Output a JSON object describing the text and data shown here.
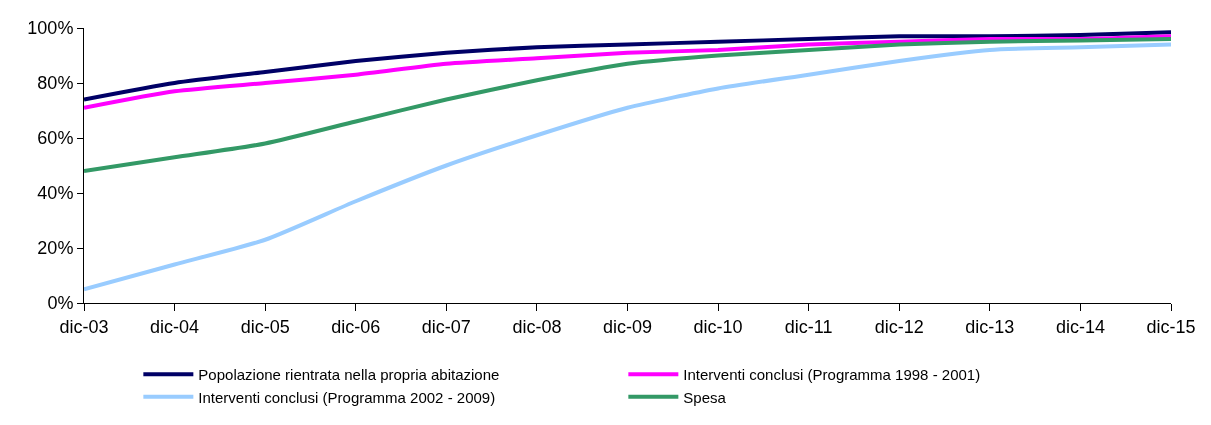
{
  "chart_data": {
    "type": "line",
    "categories": [
      "dic-03",
      "dic-04",
      "dic-05",
      "dic-06",
      "dic-07",
      "dic-08",
      "dic-09",
      "dic-10",
      "dic-11",
      "dic-12",
      "dic-13",
      "dic-14",
      "dic-15"
    ],
    "series": [
      {
        "name": "Popolazione rientrata nella propria abitazione",
        "color": "#000066",
        "values": [
          74,
          80,
          84,
          88,
          91,
          93,
          94,
          95,
          96,
          97,
          97,
          97.5,
          98.5
        ]
      },
      {
        "name": "Interventi conclusi (Programma 1998 - 2001)",
        "color": "#ff00ff",
        "values": [
          71,
          77,
          80,
          83,
          87,
          89,
          91,
          92,
          94,
          95,
          96,
          96,
          97
        ]
      },
      {
        "name": "Interventi conclusi (Programma 2002 - 2009)",
        "color": "#99ccff",
        "values": [
          5,
          14,
          23,
          37,
          50,
          61,
          71,
          78,
          83,
          88,
          92,
          93,
          94
        ]
      },
      {
        "name": "Spesa",
        "color": "#339966",
        "values": [
          48,
          53,
          58,
          66,
          74,
          81,
          87,
          90,
          92,
          94,
          95,
          95.5,
          96
        ]
      }
    ],
    "ylim": [
      0,
      100
    ],
    "yticks": [
      {
        "value": 0,
        "label": "0%"
      },
      {
        "value": 20,
        "label": "20%"
      },
      {
        "value": 40,
        "label": "40%"
      },
      {
        "value": 60,
        "label": "60%"
      },
      {
        "value": 80,
        "label": "80%"
      },
      {
        "value": 100,
        "label": "100%"
      }
    ],
    "legend": "bottom",
    "marker": "none",
    "line_style": "solid"
  }
}
